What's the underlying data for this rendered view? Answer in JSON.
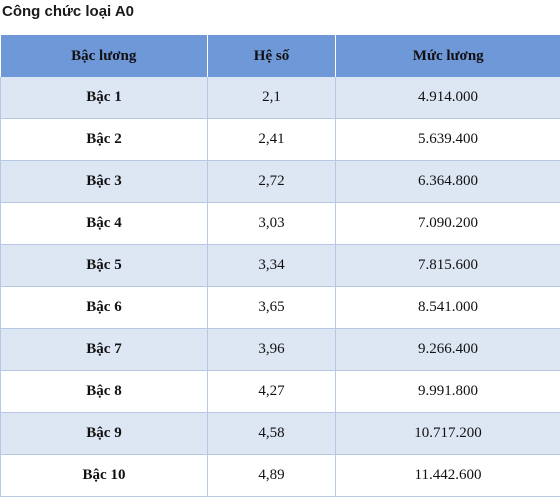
{
  "title": "Công chức loại A0",
  "table": {
    "headers": [
      "Bậc lương",
      "Hệ số",
      "Mức lương"
    ],
    "rows": [
      [
        "Bậc 1",
        "2,1",
        "4.914.000"
      ],
      [
        "Bậc 2",
        "2,41",
        "5.639.400"
      ],
      [
        "Bậc 3",
        "2,72",
        "6.364.800"
      ],
      [
        "Bậc 4",
        "3,03",
        "7.090.200"
      ],
      [
        "Bậc 5",
        "3,34",
        "7.815.600"
      ],
      [
        "Bậc 6",
        "3,65",
        "8.541.000"
      ],
      [
        "Bậc 7",
        "3,96",
        "9.266.400"
      ],
      [
        "Bậc 8",
        "4,27",
        "9.991.800"
      ],
      [
        "Bậc 9",
        "4,58",
        "10.717.200"
      ],
      [
        "Bậc 10",
        "4,89",
        "11.442.600"
      ]
    ]
  },
  "colors": {
    "header_bg": "#6f98d8",
    "row_alt_bg": "#dde6f3",
    "row_bg": "#ffffff",
    "border": "#b7c8e3"
  }
}
